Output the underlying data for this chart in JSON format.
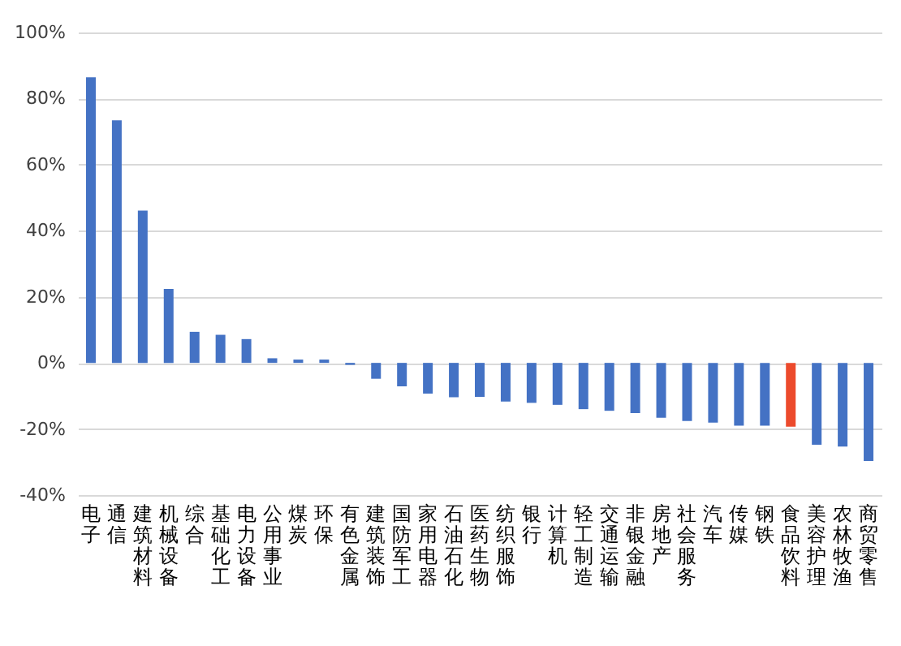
{
  "chart_data": {
    "type": "bar",
    "categories": [
      "电子",
      "通信",
      "建筑材料",
      "机械设备",
      "综合",
      "基础化工",
      "电力设备",
      "公用事业",
      "煤炭",
      "环保",
      "有色金属",
      "建筑装饰",
      "国防军工",
      "家用电器",
      "石油石化",
      "医药生物",
      "纺织服饰",
      "银行",
      "计算机",
      "轻工制造",
      "交通运输",
      "非银金融",
      "房地产",
      "社会服务",
      "汽车",
      "传媒",
      "钢铁",
      "食品饮料",
      "美容护理",
      "农林牧渔",
      "商贸零售"
    ],
    "values": [
      86.4,
      73.4,
      46.1,
      22.4,
      9.4,
      8.5,
      7.2,
      1.4,
      1.0,
      1.0,
      -0.6,
      -4.8,
      -7.1,
      -9.3,
      -10.4,
      -10.3,
      -11.7,
      -12.1,
      -12.7,
      -14.0,
      -14.5,
      -15.2,
      -16.6,
      -17.6,
      -18.1,
      -19.0,
      -19.0,
      -19.3,
      -24.8,
      -25.3,
      -29.7
    ],
    "colors": [
      "#4472c4",
      "#4472c4",
      "#4472c4",
      "#4472c4",
      "#4472c4",
      "#4472c4",
      "#4472c4",
      "#4472c4",
      "#4472c4",
      "#4472c4",
      "#4472c4",
      "#4472c4",
      "#4472c4",
      "#4472c4",
      "#4472c4",
      "#4472c4",
      "#4472c4",
      "#4472c4",
      "#4472c4",
      "#4472c4",
      "#4472c4",
      "#4472c4",
      "#4472c4",
      "#4472c4",
      "#4472c4",
      "#4472c4",
      "#4472c4",
      "#ec4a2c",
      "#4472c4",
      "#4472c4",
      "#4472c4"
    ],
    "ylim": [
      -40,
      100
    ],
    "yticks": [
      {
        "value": -40,
        "label": "-40%"
      },
      {
        "value": -20,
        "label": "-20%"
      },
      {
        "value": 0,
        "label": "0%"
      },
      {
        "value": 20,
        "label": "20%"
      },
      {
        "value": 40,
        "label": "40%"
      },
      {
        "value": 60,
        "label": "60%"
      },
      {
        "value": 80,
        "label": "80%"
      },
      {
        "value": 100,
        "label": "100%"
      }
    ],
    "grid": "y"
  }
}
